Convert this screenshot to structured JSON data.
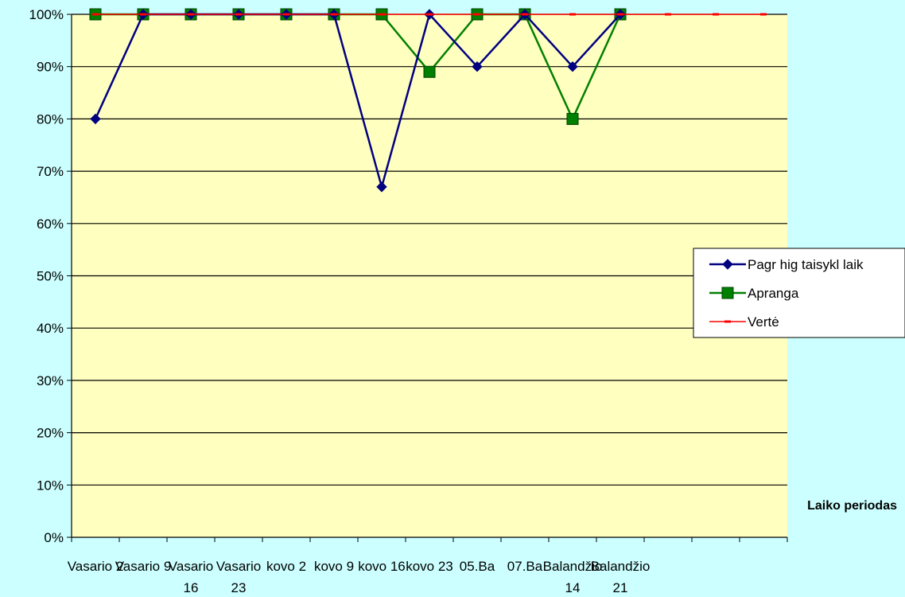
{
  "chart_data": {
    "type": "line",
    "title": "",
    "xlabel": "Laiko periodas",
    "ylabel": "",
    "ylim": [
      0,
      1
    ],
    "yticks": [
      "0%",
      "10%",
      "20%",
      "30%",
      "40%",
      "50%",
      "60%",
      "70%",
      "80%",
      "90%",
      "100%"
    ],
    "grid": true,
    "legend_position": "right",
    "plot_background": "#ffffc0",
    "page_background": "#ccffff",
    "categories": [
      [
        "Vasario 2"
      ],
      [
        "Vasario 9"
      ],
      [
        "Vasario",
        "16"
      ],
      [
        "Vasario",
        "23"
      ],
      [
        "kovo 2"
      ],
      [
        "kovo 9"
      ],
      [
        "kovo 16"
      ],
      [
        "kovo 23"
      ],
      [
        "05.Ba"
      ],
      [
        "07.Ba"
      ],
      [
        "Balandžio",
        "14"
      ],
      [
        "Balandžio",
        "21"
      ],
      [
        ""
      ],
      [
        ""
      ],
      [
        ""
      ]
    ],
    "series": [
      {
        "name": "Pagr hig taisykl laik",
        "color": "#000080",
        "marker": "diamond",
        "values": [
          0.8,
          1.0,
          1.0,
          1.0,
          1.0,
          1.0,
          0.67,
          1.0,
          0.9,
          1.0,
          0.9,
          1.0,
          null,
          null,
          null
        ]
      },
      {
        "name": "Apranga",
        "color": "#008000",
        "marker": "square",
        "values": [
          1.0,
          1.0,
          1.0,
          1.0,
          1.0,
          1.0,
          1.0,
          0.89,
          1.0,
          1.0,
          0.8,
          1.0,
          null,
          null,
          null
        ]
      },
      {
        "name": "Vertė",
        "color": "#ff0000",
        "marker": "dash",
        "values": [
          1.0,
          1.0,
          1.0,
          1.0,
          1.0,
          1.0,
          1.0,
          1.0,
          1.0,
          1.0,
          1.0,
          1.0,
          1.0,
          1.0,
          1.0
        ]
      }
    ]
  }
}
